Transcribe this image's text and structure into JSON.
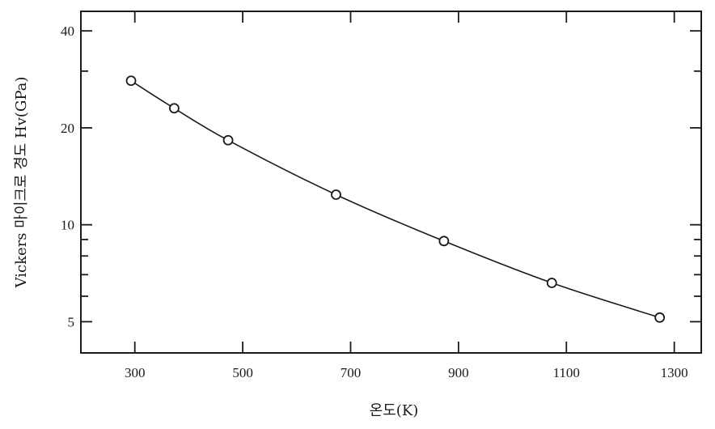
{
  "chart_data": {
    "type": "scatter",
    "title": "",
    "xlabel": "온도(K)",
    "ylabel": "Vickers 마이크로 경도 Hv(GPa)",
    "x_ticks": [
      300,
      500,
      700,
      900,
      1100,
      1300
    ],
    "x_tick_labels": [
      "300",
      "500",
      "700",
      "900",
      "1100",
      "1300"
    ],
    "y_ticks": [
      5,
      10,
      20,
      40
    ],
    "y_tick_labels": [
      "5",
      "10",
      "20",
      "40"
    ],
    "xlim": [
      200,
      1350
    ],
    "ylim": [
      4,
      46
    ],
    "y_scale": "log",
    "grid": false,
    "series": [
      {
        "x": [
          293,
          373,
          473,
          673,
          873,
          1073,
          1273
        ],
        "y": [
          28,
          23,
          18.3,
          12.4,
          8.9,
          6.6,
          5.15
        ],
        "marker": "open-circle",
        "fit_line": true
      }
    ]
  }
}
